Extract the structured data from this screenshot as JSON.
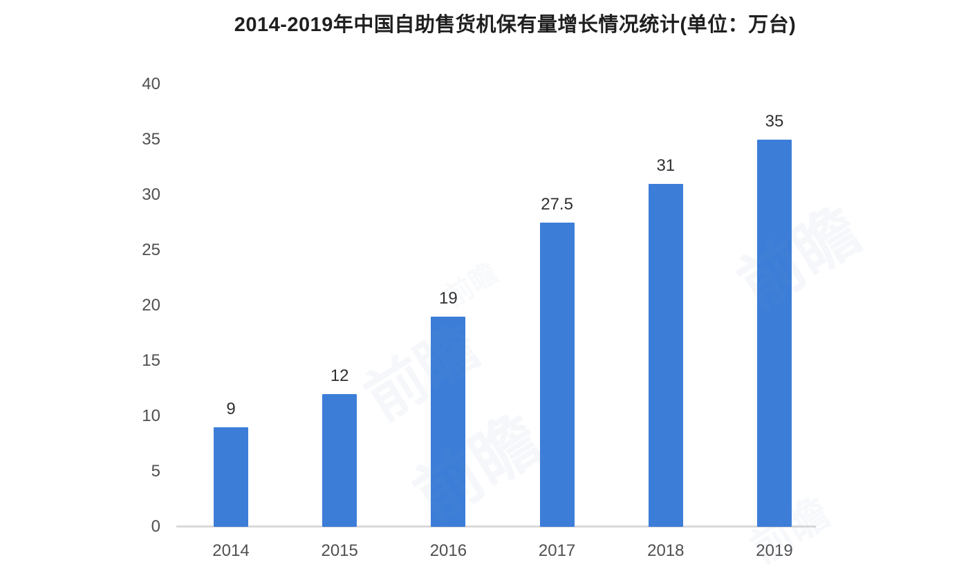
{
  "chart_data": {
    "type": "bar",
    "title": "2014-2019年中国自助售货机保有量增长情况统计(单位：万台)",
    "categories": [
      "2014",
      "2015",
      "2016",
      "2017",
      "2018",
      "2019"
    ],
    "values": [
      9,
      12,
      19,
      27.5,
      31,
      35
    ],
    "value_labels": [
      "9",
      "12",
      "19",
      "27.5",
      "31",
      "35"
    ],
    "yticks": [
      0,
      5,
      10,
      15,
      20,
      25,
      30,
      35,
      40
    ],
    "ylim": [
      0,
      40
    ],
    "xlabel": "",
    "ylabel": "",
    "grid": false,
    "legend": "none",
    "bar_color": "#3c7dd8",
    "axis_line_color": "#d9d9d9",
    "title_color": "#1f1f1f",
    "tick_label_color": "#4f4f4f",
    "value_label_color": "#2f2f2f",
    "background_color": "#ffffff",
    "watermark_text": "前瞻"
  }
}
